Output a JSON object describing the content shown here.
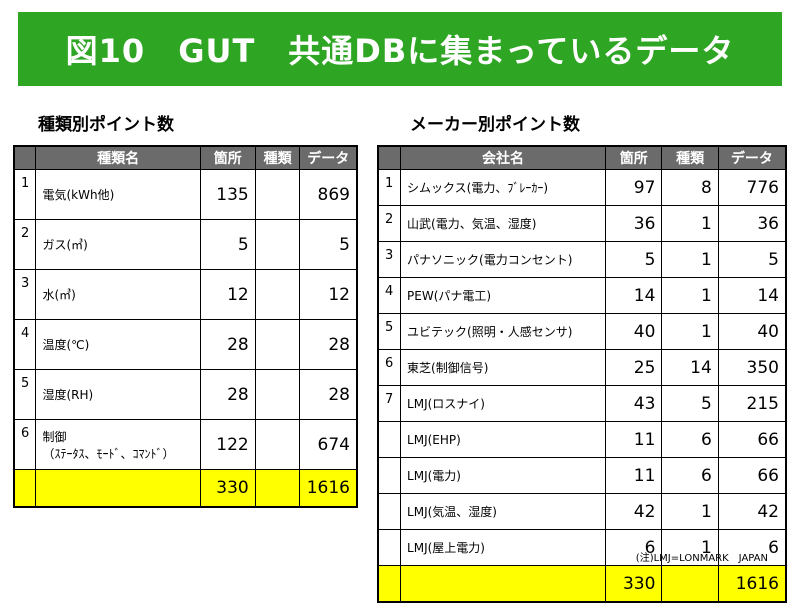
{
  "title": "図10　GUT　共通DBに集まっているデータ",
  "left": {
    "heading": "種類別ポイント数",
    "columns": [
      "",
      "種類名",
      "箇所",
      "種類",
      "データ"
    ],
    "rows": [
      {
        "idx": "1",
        "name": "電気(kWh他)",
        "count": "135",
        "kinds": "",
        "data": "869"
      },
      {
        "idx": "2",
        "name": "ガス(㎥)",
        "count": "5",
        "kinds": "",
        "data": "5"
      },
      {
        "idx": "3",
        "name": "水(㎥)",
        "count": "12",
        "kinds": "",
        "data": "12"
      },
      {
        "idx": "4",
        "name": "温度(℃)",
        "count": "28",
        "kinds": "",
        "data": "28"
      },
      {
        "idx": "5",
        "name": "湿度(RH)",
        "count": "28",
        "kinds": "",
        "data": "28"
      },
      {
        "idx": "6",
        "name": "制御\n（ｽﾃｰﾀｽ、ﾓｰﾄﾞ、ｺﾏﾝﾄﾞ）",
        "count": "122",
        "kinds": "",
        "data": "674"
      }
    ],
    "total": {
      "count": "330",
      "kinds": "",
      "data": "1616"
    }
  },
  "right": {
    "heading": "メーカー別ポイント数",
    "columns": [
      "",
      "会社名",
      "箇所",
      "種類",
      "データ"
    ],
    "rows": [
      {
        "idx": "1",
        "name": "シムックス(電力、ﾌﾞﾚｰｶｰ)",
        "count": "97",
        "kinds": "8",
        "data": "776"
      },
      {
        "idx": "2",
        "name": "山武(電力、気温、湿度)",
        "count": "36",
        "kinds": "1",
        "data": "36"
      },
      {
        "idx": "3",
        "name": "パナソニック(電力コンセント)",
        "count": "5",
        "kinds": "1",
        "data": "5"
      },
      {
        "idx": "4",
        "name": "PEW(パナ電工)",
        "count": "14",
        "kinds": "1",
        "data": "14"
      },
      {
        "idx": "5",
        "name": "ユビテック(照明・人感センサ)",
        "count": "40",
        "kinds": "1",
        "data": "40"
      },
      {
        "idx": "6",
        "name": "東芝(制御信号)",
        "count": "25",
        "kinds": "14",
        "data": "350"
      },
      {
        "idx": "7",
        "name": "LMJ(ロスナイ)",
        "count": "43",
        "kinds": "5",
        "data": "215"
      },
      {
        "idx": "",
        "name": "LMJ(EHP)",
        "count": "11",
        "kinds": "6",
        "data": "66"
      },
      {
        "idx": "",
        "name": "LMJ(電力)",
        "count": "11",
        "kinds": "6",
        "data": "66"
      },
      {
        "idx": "",
        "name": "LMJ(気温、湿度)",
        "count": "42",
        "kinds": "1",
        "data": "42"
      },
      {
        "idx": "",
        "name": "LMJ(屋上電力)",
        "count": "6",
        "kinds": "1",
        "data": "6"
      }
    ],
    "total": {
      "count": "330",
      "kinds": "",
      "data": "1616"
    }
  },
  "note": "(注)LMJ=LONMARK　JAPAN"
}
